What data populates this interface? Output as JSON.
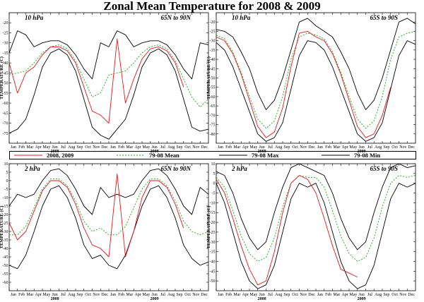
{
  "title": "Zonal Mean Temperature for 2008 & 2009",
  "colors": {
    "series_2008_2009": "#e8161b",
    "mean": "#19a819",
    "max": "#000000",
    "min": "#000000"
  },
  "months": [
    "Jan",
    "Feb",
    "Mar",
    "Apr",
    "May",
    "Jun",
    "Jul",
    "Aug",
    "Sep",
    "Oct",
    "Nov",
    "Dec",
    "Jan",
    "Feb",
    "Mar",
    "Apr",
    "May",
    "Jun",
    "Jul",
    "Aug",
    "Sep",
    "Oct",
    "Nov",
    "Dec"
  ],
  "years": [
    "2008",
    "2009"
  ],
  "ylabel": "TEMPERATURE (C)",
  "legend": [
    {
      "label": "2008, 2009",
      "style": "solid",
      "color": "#e8161b"
    },
    {
      "label": "79-08 Mean",
      "style": "dotted",
      "color": "#19a819"
    },
    {
      "label": "79-08 Max",
      "style": "solid",
      "color": "#000000"
    },
    {
      "label": "79-08 Min",
      "style": "solid",
      "color": "#000000"
    }
  ],
  "chart_data": [
    {
      "type": "line",
      "pressure_label": "10 hPa",
      "region_label": "65N to 90N",
      "ylim": [
        -80,
        -15
      ],
      "yticks": [
        -20,
        -25,
        -30,
        -35,
        -40,
        -45,
        -50,
        -55,
        -60,
        -65,
        -70,
        -75
      ],
      "x": [
        0,
        1,
        2,
        3,
        4,
        5,
        6,
        7,
        8,
        9,
        10,
        11,
        12,
        13,
        14,
        15,
        16,
        17,
        18,
        19,
        20,
        21,
        22,
        23,
        24
      ],
      "series": [
        {
          "name": "2008, 2009",
          "values": [
            -40,
            -55,
            -45,
            -42,
            -36,
            -32,
            -32,
            -34,
            -40,
            -52,
            -64,
            -66,
            -70,
            -28,
            -60,
            -48,
            -38,
            -33,
            -32,
            -34,
            -40,
            -52,
            null,
            null,
            null
          ]
        },
        {
          "name": "79-08 Mean",
          "values": [
            -46,
            -45,
            -44,
            -40,
            -35,
            -32,
            -31,
            -33,
            -39,
            -48,
            -57,
            -55,
            -46,
            -45,
            -44,
            -40,
            -35,
            -32,
            -31,
            -33,
            -39,
            -48,
            -57,
            -62,
            -58
          ]
        },
        {
          "name": "79-08 Max",
          "values": [
            -35,
            -24,
            -26,
            -32,
            -30,
            -29,
            -29,
            -31,
            -36,
            -43,
            -48,
            -30,
            -32,
            -24,
            -26,
            -32,
            -30,
            -29,
            -29,
            -31,
            -36,
            -43,
            -48,
            -30,
            -31
          ]
        },
        {
          "name": "79-08 Min",
          "values": [
            -75,
            -73,
            -68,
            -56,
            -42,
            -35,
            -33,
            -36,
            -44,
            -58,
            -72,
            -76,
            -78,
            -73,
            -68,
            -56,
            -42,
            -35,
            -33,
            -36,
            -44,
            -58,
            -72,
            -74,
            -73
          ]
        }
      ]
    },
    {
      "type": "line",
      "pressure_label": "10 hPa",
      "region_label": "65S to 90S",
      "ylim": [
        -85,
        -15
      ],
      "yticks": [
        -20,
        -25,
        -30,
        -35,
        -40,
        -45,
        -50,
        -55,
        -60,
        -65,
        -70,
        -75,
        -80
      ],
      "x": [
        0,
        1,
        2,
        3,
        4,
        5,
        6,
        7,
        8,
        9,
        10,
        11,
        12,
        13,
        14,
        15,
        16,
        17,
        18,
        19,
        20,
        21,
        22,
        23,
        24
      ],
      "series": [
        {
          "name": "2008, 2009",
          "values": [
            -28,
            -30,
            -37,
            -48,
            -62,
            -76,
            -82,
            -79,
            -66,
            -44,
            -26,
            -25,
            -28,
            -30,
            -37,
            -48,
            -62,
            -76,
            -82,
            -80,
            -70,
            -55,
            null,
            null,
            null
          ]
        },
        {
          "name": "79-08 Mean",
          "values": [
            -27,
            -29,
            -36,
            -47,
            -60,
            -72,
            -77,
            -73,
            -60,
            -40,
            -28,
            -26,
            -27,
            -29,
            -36,
            -47,
            -60,
            -72,
            -77,
            -73,
            -60,
            -40,
            -28,
            -26,
            -25
          ]
        },
        {
          "name": "79-08 Max",
          "values": [
            -24,
            -25,
            -28,
            -36,
            -45,
            -58,
            -67,
            -62,
            -50,
            -35,
            -20,
            -18,
            -22,
            -25,
            -28,
            -36,
            -45,
            -58,
            -67,
            -62,
            -50,
            -35,
            -20,
            -18,
            -21
          ]
        },
        {
          "name": "79-08 Min",
          "values": [
            -31,
            -35,
            -44,
            -56,
            -68,
            -80,
            -84,
            -82,
            -74,
            -56,
            -38,
            -30,
            -31,
            -35,
            -44,
            -56,
            -68,
            -80,
            -84,
            -82,
            -74,
            -56,
            -38,
            -30,
            -32
          ]
        }
      ]
    },
    {
      "type": "line",
      "pressure_label": "2 hPa",
      "region_label": "65N to 90N",
      "ylim": [
        -65,
        10
      ],
      "yticks": [
        10,
        5,
        0,
        -5,
        -10,
        -15,
        -20,
        -25,
        -30,
        -35,
        -40,
        -45,
        -50,
        -55,
        -60
      ],
      "x": [
        0,
        1,
        2,
        3,
        4,
        5,
        6,
        7,
        8,
        9,
        10,
        11,
        12,
        13,
        14,
        15,
        16,
        17,
        18,
        19,
        20,
        21,
        22,
        23,
        24
      ],
      "series": [
        {
          "name": "2008, 2009",
          "values": [
            -25,
            -35,
            -30,
            -18,
            -6,
            0,
            0,
            -4,
            -14,
            -28,
            -38,
            -40,
            -45,
            4,
            -45,
            -30,
            -10,
            0,
            0,
            -4,
            -14,
            -28,
            null,
            null,
            null
          ]
        },
        {
          "name": "79-08 Mean",
          "values": [
            -32,
            -32,
            -27,
            -16,
            -5,
            1,
            1,
            -3,
            -12,
            -24,
            -30,
            -28,
            -32,
            -32,
            -27,
            -16,
            -5,
            1,
            1,
            -3,
            -12,
            -24,
            -30,
            -32,
            -30
          ]
        },
        {
          "name": "79-08 Max",
          "values": [
            -15,
            -8,
            -10,
            -8,
            0,
            6,
            7,
            3,
            -5,
            -15,
            -20,
            -4,
            -10,
            -8,
            -10,
            -8,
            0,
            6,
            7,
            3,
            -5,
            -15,
            -20,
            -4,
            -8
          ]
        },
        {
          "name": "79-08 Min",
          "values": [
            -50,
            -52,
            -44,
            -30,
            -15,
            -5,
            -3,
            -10,
            -22,
            -38,
            -46,
            -44,
            -50,
            -52,
            -44,
            -30,
            -15,
            -5,
            -3,
            -10,
            -22,
            -38,
            -46,
            -50,
            -48
          ]
        }
      ]
    },
    {
      "type": "line",
      "pressure_label": "2 hPa",
      "region_label": "65S to 90S",
      "ylim": [
        -55,
        10
      ],
      "yticks": [
        10,
        5,
        0,
        -5,
        -10,
        -15,
        -20,
        -25,
        -30,
        -35,
        -40,
        -45,
        -50
      ],
      "x": [
        0,
        1,
        2,
        3,
        4,
        5,
        6,
        7,
        8,
        9,
        10,
        11,
        12,
        13,
        14,
        15,
        16,
        17,
        18,
        19,
        20,
        21,
        22,
        23,
        24
      ],
      "series": [
        {
          "name": "2008, 2009",
          "values": [
            2,
            -5,
            -18,
            -32,
            -44,
            -52,
            -50,
            -35,
            -15,
            0,
            4,
            2,
            -5,
            -18,
            -32,
            -44,
            -46,
            -48,
            null,
            null,
            null,
            null,
            null,
            null,
            null
          ]
        },
        {
          "name": "79-08 Mean",
          "values": [
            3,
            -2,
            -14,
            -27,
            -36,
            -40,
            -38,
            -28,
            -12,
            0,
            4,
            3,
            3,
            -2,
            -14,
            -27,
            -36,
            -40,
            -38,
            -28,
            -12,
            0,
            4,
            3,
            4
          ]
        },
        {
          "name": "79-08 Max",
          "values": [
            6,
            4,
            -5,
            -18,
            -28,
            -34,
            -30,
            -15,
            -2,
            8,
            10,
            8,
            6,
            4,
            -5,
            -18,
            -28,
            -34,
            -30,
            -15,
            -2,
            8,
            10,
            8,
            9
          ]
        },
        {
          "name": "79-08 Min",
          "values": [
            0,
            -10,
            -25,
            -40,
            -50,
            -54,
            -52,
            -42,
            -25,
            -8,
            0,
            -2,
            0,
            -10,
            -25,
            -40,
            -50,
            -54,
            -52,
            -42,
            -25,
            -8,
            0,
            -2,
            0
          ]
        }
      ]
    }
  ]
}
